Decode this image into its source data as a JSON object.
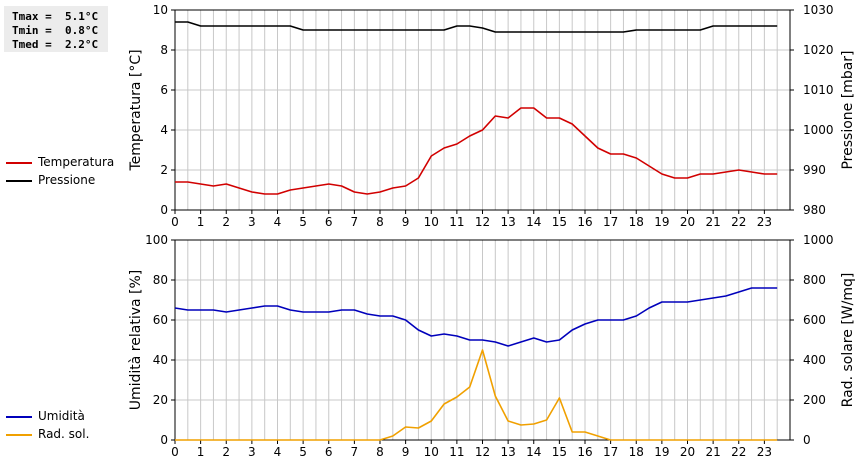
{
  "stats": {
    "tmax": "Tmax =  5.1°C",
    "tmin": "Tmin =  0.8°C",
    "tmed": "Tmed =  2.2°C"
  },
  "legend_top": [
    {
      "label": "Temperatura",
      "color": "#d10000"
    },
    {
      "label": "Pressione",
      "color": "#000000"
    }
  ],
  "legend_bottom": [
    {
      "label": "Umidità",
      "color": "#0000bb"
    },
    {
      "label": "Rad. sol.",
      "color": "#f0a000"
    }
  ],
  "chart_data": [
    {
      "type": "line",
      "x_ticks": [
        "0",
        "1",
        "2",
        "3",
        "4",
        "5",
        "6",
        "7",
        "8",
        "9",
        "10",
        "11",
        "12",
        "13",
        "14",
        "15",
        "16",
        "17",
        "18",
        "19",
        "20",
        "21",
        "22",
        "23"
      ],
      "xlim": [
        0,
        24
      ],
      "grid": true,
      "ylabel_left": "Temperatura [°C]",
      "ylim_left": [
        0,
        10
      ],
      "yticks_left": [
        "0",
        "2",
        "4",
        "6",
        "8",
        "10"
      ],
      "ylabel_right": "Pressione [mbar]",
      "ylim_right": [
        980,
        1030
      ],
      "yticks_right": [
        "980",
        "990",
        "1000",
        "1010",
        "1020",
        "1030"
      ],
      "series": [
        {
          "name": "Temperatura",
          "axis": "left",
          "color": "#d10000",
          "points": [
            [
              0,
              1.4
            ],
            [
              0.5,
              1.4
            ],
            [
              1,
              1.3
            ],
            [
              1.5,
              1.2
            ],
            [
              2,
              1.3
            ],
            [
              2.5,
              1.1
            ],
            [
              3,
              0.9
            ],
            [
              3.5,
              0.8
            ],
            [
              4,
              0.8
            ],
            [
              4.5,
              1.0
            ],
            [
              5,
              1.1
            ],
            [
              5.5,
              1.2
            ],
            [
              6,
              1.3
            ],
            [
              6.5,
              1.2
            ],
            [
              7,
              0.9
            ],
            [
              7.5,
              0.8
            ],
            [
              8,
              0.9
            ],
            [
              8.5,
              1.1
            ],
            [
              9,
              1.2
            ],
            [
              9.5,
              1.6
            ],
            [
              10,
              2.7
            ],
            [
              10.5,
              3.1
            ],
            [
              11,
              3.3
            ],
            [
              11.5,
              3.7
            ],
            [
              12,
              4.0
            ],
            [
              12.5,
              4.7
            ],
            [
              13,
              4.6
            ],
            [
              13.5,
              5.1
            ],
            [
              14,
              5.1
            ],
            [
              14.5,
              4.6
            ],
            [
              15,
              4.6
            ],
            [
              15.5,
              4.3
            ],
            [
              16,
              3.7
            ],
            [
              16.5,
              3.1
            ],
            [
              17,
              2.8
            ],
            [
              17.5,
              2.8
            ],
            [
              18,
              2.6
            ],
            [
              18.5,
              2.2
            ],
            [
              19,
              1.8
            ],
            [
              19.5,
              1.6
            ],
            [
              20,
              1.6
            ],
            [
              20.5,
              1.8
            ],
            [
              21,
              1.8
            ],
            [
              21.5,
              1.9
            ],
            [
              22,
              2.0
            ],
            [
              22.5,
              1.9
            ],
            [
              23,
              1.8
            ],
            [
              23.5,
              1.8
            ]
          ]
        },
        {
          "name": "Pressione",
          "axis": "right",
          "color": "#000000",
          "points": [
            [
              0,
              1027
            ],
            [
              0.5,
              1027
            ],
            [
              1,
              1026
            ],
            [
              2,
              1026
            ],
            [
              3,
              1026
            ],
            [
              4,
              1026
            ],
            [
              4.5,
              1026
            ],
            [
              5,
              1025
            ],
            [
              6,
              1025
            ],
            [
              7,
              1025
            ],
            [
              8,
              1025
            ],
            [
              9,
              1025
            ],
            [
              10,
              1025
            ],
            [
              10.5,
              1025
            ],
            [
              11,
              1026
            ],
            [
              11.5,
              1026
            ],
            [
              12,
              1025.5
            ],
            [
              12.5,
              1024.5
            ],
            [
              13,
              1024.5
            ],
            [
              14,
              1024.5
            ],
            [
              15,
              1024.5
            ],
            [
              16,
              1024.5
            ],
            [
              17,
              1024.5
            ],
            [
              17.5,
              1024.5
            ],
            [
              18,
              1025
            ],
            [
              19,
              1025
            ],
            [
              20,
              1025
            ],
            [
              20.5,
              1025
            ],
            [
              21,
              1026
            ],
            [
              22,
              1026
            ],
            [
              23,
              1026
            ],
            [
              23.5,
              1026
            ]
          ]
        }
      ]
    },
    {
      "type": "line",
      "x_ticks": [
        "0",
        "1",
        "2",
        "3",
        "4",
        "5",
        "6",
        "7",
        "8",
        "9",
        "10",
        "11",
        "12",
        "13",
        "14",
        "15",
        "16",
        "17",
        "18",
        "19",
        "20",
        "21",
        "22",
        "23"
      ],
      "xlim": [
        0,
        24
      ],
      "grid": true,
      "ylabel_left": "Umidità relativa [%]",
      "ylim_left": [
        0,
        100
      ],
      "yticks_left": [
        "0",
        "20",
        "40",
        "60",
        "80",
        "100"
      ],
      "ylabel_right": "Rad. solare [W/mq]",
      "ylim_right": [
        0,
        1000
      ],
      "yticks_right": [
        "0",
        "200",
        "400",
        "600",
        "800",
        "1000"
      ],
      "series": [
        {
          "name": "Umidità",
          "axis": "left",
          "color": "#0000bb",
          "points": [
            [
              0,
              66
            ],
            [
              0.5,
              65
            ],
            [
              1,
              65
            ],
            [
              1.5,
              65
            ],
            [
              2,
              64
            ],
            [
              2.5,
              65
            ],
            [
              3,
              66
            ],
            [
              3.5,
              67
            ],
            [
              4,
              67
            ],
            [
              4.5,
              65
            ],
            [
              5,
              64
            ],
            [
              5.5,
              64
            ],
            [
              6,
              64
            ],
            [
              6.5,
              65
            ],
            [
              7,
              65
            ],
            [
              7.5,
              63
            ],
            [
              8,
              62
            ],
            [
              8.5,
              62
            ],
            [
              9,
              60
            ],
            [
              9.5,
              55
            ],
            [
              10,
              52
            ],
            [
              10.5,
              53
            ],
            [
              11,
              52
            ],
            [
              11.5,
              50
            ],
            [
              12,
              50
            ],
            [
              12.5,
              49
            ],
            [
              13,
              47
            ],
            [
              13.5,
              49
            ],
            [
              14,
              51
            ],
            [
              14.5,
              49
            ],
            [
              15,
              50
            ],
            [
              15.5,
              55
            ],
            [
              16,
              58
            ],
            [
              16.5,
              60
            ],
            [
              17,
              60
            ],
            [
              17.5,
              60
            ],
            [
              18,
              62
            ],
            [
              18.5,
              66
            ],
            [
              19,
              69
            ],
            [
              19.5,
              69
            ],
            [
              20,
              69
            ],
            [
              20.5,
              70
            ],
            [
              21,
              71
            ],
            [
              21.5,
              72
            ],
            [
              22,
              74
            ],
            [
              22.5,
              76
            ],
            [
              23,
              76
            ],
            [
              23.5,
              76
            ]
          ]
        },
        {
          "name": "Rad. sol.",
          "axis": "right",
          "color": "#f0a000",
          "points": [
            [
              0,
              0
            ],
            [
              1,
              0
            ],
            [
              2,
              0
            ],
            [
              3,
              0
            ],
            [
              4,
              0
            ],
            [
              5,
              0
            ],
            [
              6,
              0
            ],
            [
              7,
              0
            ],
            [
              8,
              0
            ],
            [
              8.5,
              20
            ],
            [
              9,
              65
            ],
            [
              9.5,
              60
            ],
            [
              10,
              95
            ],
            [
              10.5,
              180
            ],
            [
              11,
              215
            ],
            [
              11.5,
              265
            ],
            [
              12,
              450
            ],
            [
              12.5,
              220
            ],
            [
              13,
              95
            ],
            [
              13.5,
              75
            ],
            [
              14,
              80
            ],
            [
              14.5,
              100
            ],
            [
              15,
              210
            ],
            [
              15.5,
              40
            ],
            [
              16,
              40
            ],
            [
              16.5,
              20
            ],
            [
              17,
              0
            ],
            [
              18,
              0
            ],
            [
              19,
              0
            ],
            [
              20,
              0
            ],
            [
              21,
              0
            ],
            [
              22,
              0
            ],
            [
              23,
              0
            ],
            [
              23.5,
              0
            ]
          ]
        }
      ]
    }
  ]
}
